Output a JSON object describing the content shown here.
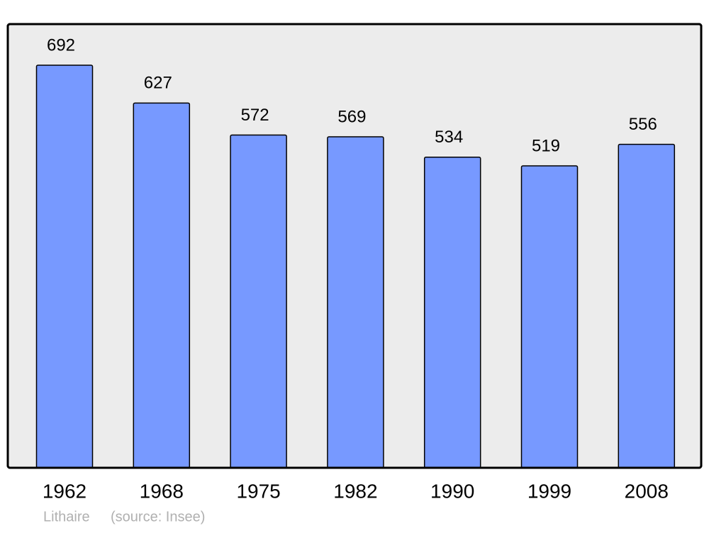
{
  "chart_data": {
    "type": "bar",
    "categories": [
      "1962",
      "1968",
      "1975",
      "1982",
      "1990",
      "1999",
      "2008"
    ],
    "values": [
      692,
      627,
      572,
      569,
      534,
      519,
      556
    ],
    "color": "#7799ff",
    "annotations": [
      "Lithaire",
      "(source: Insee)"
    ]
  }
}
